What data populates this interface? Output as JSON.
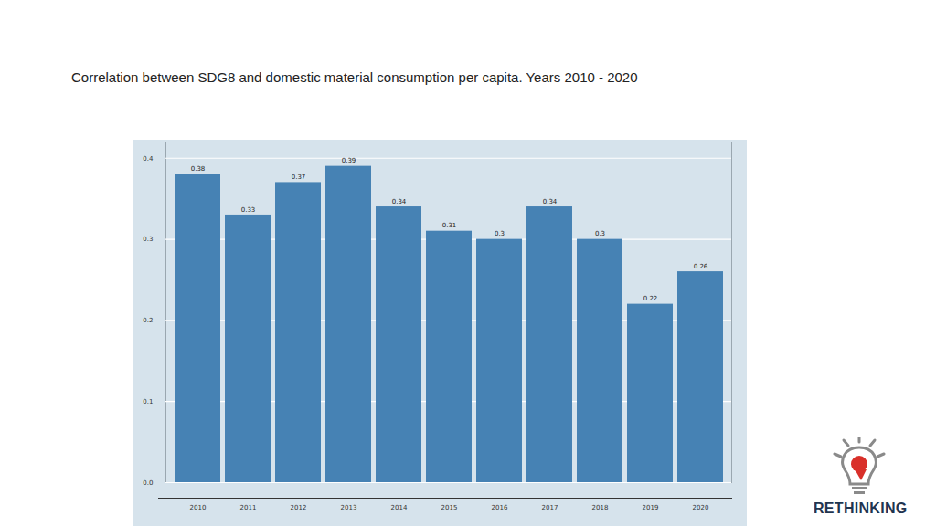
{
  "chart_data": {
    "type": "bar",
    "title": "Correlation between SDG8 and domestic material consumption per capita. Years 2010 - 2020",
    "categories": [
      "2010",
      "2011",
      "2012",
      "2013",
      "2014",
      "2015",
      "2016",
      "2017",
      "2018",
      "2019",
      "2020"
    ],
    "values": [
      0.38,
      0.33,
      0.37,
      0.39,
      0.34,
      0.31,
      0.3,
      0.34,
      0.3,
      0.22,
      0.26
    ],
    "color": "#4682b4",
    "ylim": [
      0,
      0.42
    ],
    "yticks": [
      {
        "value": 0,
        "label": "0.0"
      },
      0.1,
      0.2,
      0.3,
      0.4
    ],
    "grid": true,
    "data_labels": true
  },
  "logo": {
    "text": "RETHINKING"
  }
}
